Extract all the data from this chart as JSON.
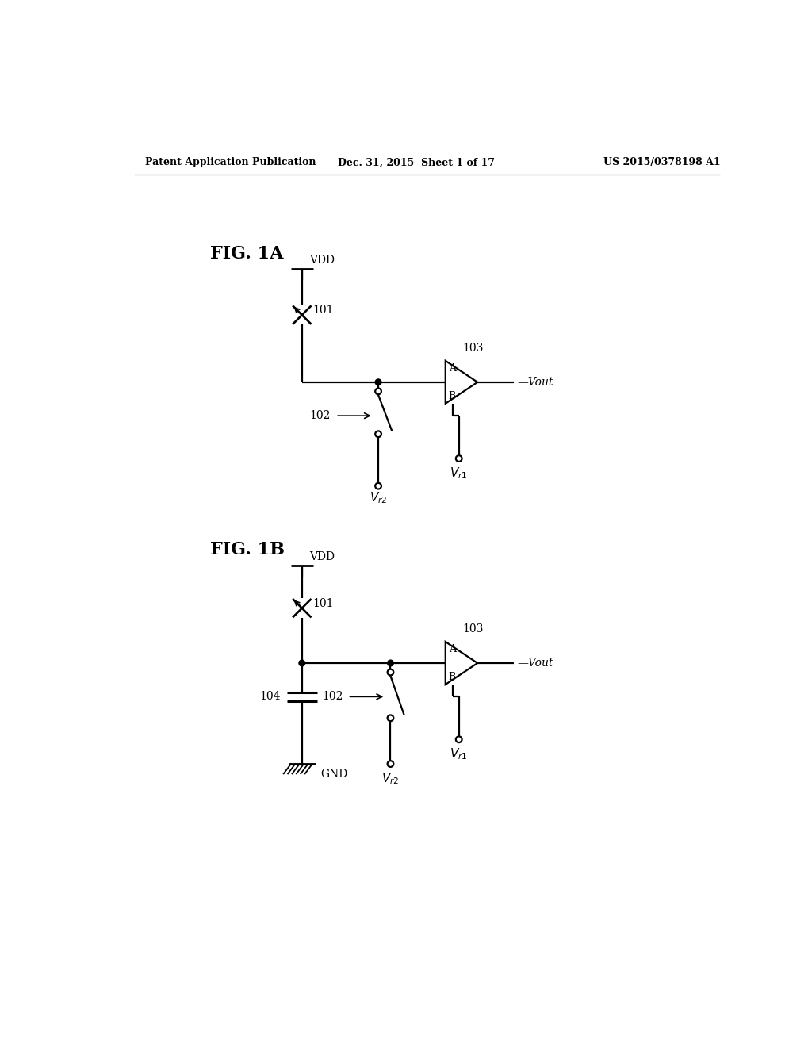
{
  "title_left": "Patent Application Publication",
  "title_mid": "Dec. 31, 2015  Sheet 1 of 17",
  "title_right": "US 2015/0378198 A1",
  "fig1a_label": "FIG. 1A",
  "fig1b_label": "FIG. 1B",
  "background_color": "#ffffff",
  "line_color": "#000000",
  "font_color": "#000000",
  "lw": 1.6
}
